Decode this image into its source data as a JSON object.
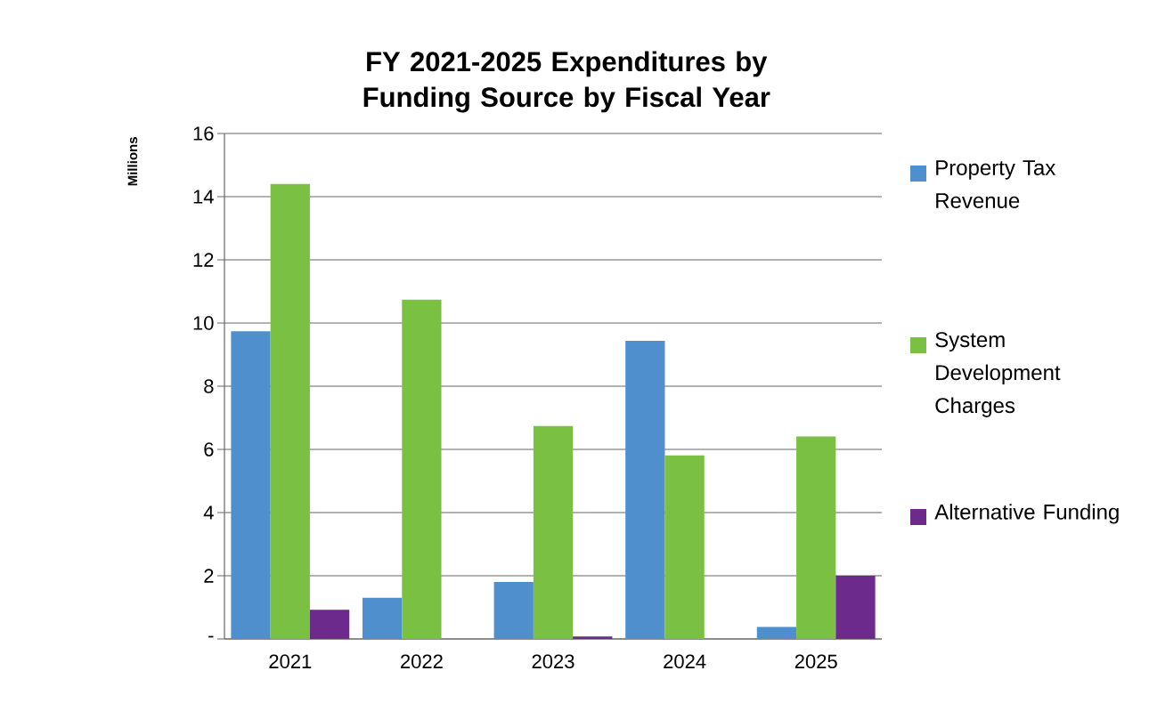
{
  "chart_data": {
    "type": "bar",
    "title": "FY 2021-2025 Expenditures by Funding Source by Fiscal Year",
    "ylabel": "Millions",
    "categories": [
      "2021",
      "2022",
      "2023",
      "2024",
      "2025"
    ],
    "series": [
      {
        "name": "Property Tax Revenue",
        "color": "#4f8fce",
        "values": [
          9.74,
          1.3,
          1.8,
          9.44,
          0.38
        ]
      },
      {
        "name": "System Development Charges",
        "color": "#7ac143",
        "values": [
          14.4,
          10.74,
          6.74,
          5.81,
          6.41
        ]
      },
      {
        "name": "Alternative Funding",
        "color": "#6b2a8c",
        "values": [
          0.92,
          0,
          0.08,
          0,
          2.0
        ]
      }
    ],
    "ylim": [
      0,
      16
    ],
    "yticks": [
      {
        "value": 0,
        "label": "-"
      },
      2,
      4,
      6,
      8,
      10,
      12,
      14,
      16
    ],
    "grid": "y",
    "legend": "right"
  }
}
